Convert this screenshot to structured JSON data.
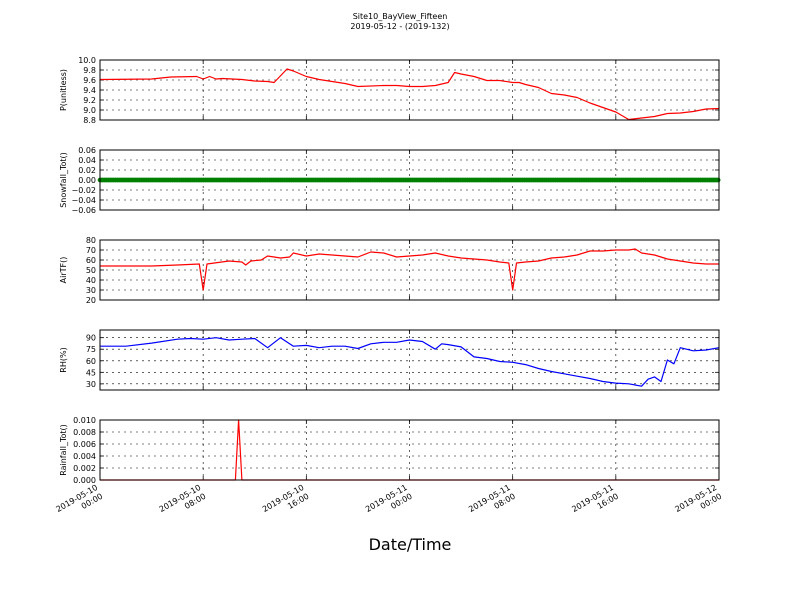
{
  "figure": {
    "title_line1": "Site10_BayView_Fifteen",
    "title_line2": "2019-05-12 - (2019-132)",
    "xlabel": "Date/Time",
    "x_ticks": [
      {
        "line1": "2019-05-10",
        "line2": "00:00"
      },
      {
        "line1": "2019-05-10",
        "line2": "08:00"
      },
      {
        "line1": "2019-05-10",
        "line2": "16:00"
      },
      {
        "line1": "2019-05-11",
        "line2": "00:00"
      },
      {
        "line1": "2019-05-11",
        "line2": "08:00"
      },
      {
        "line1": "2019-05-11",
        "line2": "16:00"
      },
      {
        "line1": "2019-05-12",
        "line2": "00:00"
      }
    ]
  },
  "chart_data": [
    {
      "type": "line",
      "ylabel": "P(unitless)",
      "ylim": [
        8.8,
        10.0
      ],
      "yticks": [
        "10.0",
        "9.8",
        "9.6",
        "9.4",
        "9.2",
        "9.0",
        "8.8"
      ],
      "color": "#ff0000",
      "grid": true,
      "x_hours": [
        0,
        4,
        5.5,
        7.5,
        8,
        8.5,
        9,
        9.5,
        11,
        12,
        13,
        13.5,
        14.5,
        15,
        16,
        17,
        18,
        19,
        20,
        22,
        23,
        24,
        25,
        26,
        27,
        27.5,
        28,
        29,
        30,
        31,
        32,
        32.5,
        33,
        34,
        35,
        36,
        37,
        38,
        39,
        40,
        41,
        42,
        43,
        44,
        45,
        46,
        47,
        48
      ],
      "values": [
        9.61,
        9.62,
        9.66,
        9.67,
        9.62,
        9.67,
        9.62,
        9.63,
        9.61,
        9.58,
        9.57,
        9.55,
        9.82,
        9.78,
        9.67,
        9.61,
        9.57,
        9.53,
        9.47,
        9.49,
        9.49,
        9.47,
        9.47,
        9.49,
        9.55,
        9.75,
        9.72,
        9.67,
        9.59,
        9.59,
        9.55,
        9.55,
        9.51,
        9.45,
        9.33,
        9.3,
        9.25,
        9.14,
        9.05,
        8.96,
        8.81,
        8.84,
        8.87,
        8.93,
        8.94,
        8.97,
        9.02,
        9.03
      ]
    },
    {
      "type": "scatter",
      "ylabel": "Snowfall_Tot()",
      "ylim": [
        -0.06,
        0.06
      ],
      "yticks": [
        "0.06",
        "0.04",
        "0.02",
        "0.00",
        "−0.02",
        "−0.04",
        "−0.06"
      ],
      "color": "#008000",
      "grid": true,
      "x_hours": [
        0,
        48
      ],
      "values": [
        0.0,
        0.0
      ],
      "note": "constant 0.00 across the whole period"
    },
    {
      "type": "line",
      "ylabel": "AirTF()",
      "ylim": [
        20,
        80
      ],
      "yticks": [
        "80",
        "70",
        "60",
        "50",
        "40",
        "30",
        "20"
      ],
      "color": "#ff0000",
      "grid": true,
      "x_hours": [
        0,
        4,
        6,
        7.7,
        8,
        8.3,
        10,
        11,
        11.3,
        11.7,
        12.5,
        13,
        14,
        14.7,
        15,
        16,
        17,
        18,
        19,
        20,
        21,
        22,
        23,
        24,
        25,
        26,
        27,
        28,
        29,
        30,
        31,
        31.7,
        32,
        32.3,
        33,
        34,
        35,
        36,
        37,
        38,
        39,
        40,
        41,
        41.5,
        42,
        43,
        44,
        45,
        46,
        47,
        48
      ],
      "values": [
        54,
        54,
        55,
        56,
        30,
        56,
        59,
        58,
        55,
        59,
        60,
        64,
        62,
        63,
        67,
        64,
        66,
        65,
        64,
        63,
        68,
        67,
        63,
        64,
        65,
        67,
        64,
        62,
        61,
        60,
        58,
        57,
        30,
        57,
        58,
        59,
        62,
        63,
        65,
        69,
        69,
        70,
        70,
        71,
        67,
        65,
        61,
        59,
        57,
        56,
        56
      ]
    },
    {
      "type": "line",
      "ylabel": "RH(%)",
      "ylim": [
        22,
        100
      ],
      "yticks": [
        "90",
        "75",
        "60",
        "45",
        "30"
      ],
      "color": "#0000ff",
      "grid": true,
      "x_hours": [
        0,
        2,
        4,
        6,
        7,
        8,
        9,
        10,
        11,
        12,
        13,
        14,
        15,
        16,
        17,
        18,
        19,
        20,
        21,
        22,
        23,
        24,
        25,
        26,
        26.5,
        27,
        28,
        29,
        30,
        31,
        32,
        33,
        34,
        35,
        36,
        37,
        38,
        39,
        40,
        41,
        42,
        42.5,
        43,
        43.5,
        44,
        44.5,
        45,
        46,
        47,
        48
      ],
      "values": [
        79,
        79,
        83,
        88,
        89,
        88,
        90,
        87,
        88,
        89,
        77,
        90,
        79,
        80,
        77,
        79,
        79,
        76,
        82,
        84,
        84,
        87,
        85,
        75,
        82,
        81,
        78,
        65,
        63,
        59,
        58,
        55,
        50,
        46,
        43,
        40,
        37,
        33,
        31,
        30,
        27,
        36,
        39,
        33,
        61,
        56,
        77,
        73,
        74,
        77
      ]
    },
    {
      "type": "line",
      "ylabel": "Rainfall_Tot()",
      "ylim": [
        0.0,
        0.01
      ],
      "yticks": [
        "0.010",
        "0.008",
        "0.006",
        "0.004",
        "0.002",
        "0.000"
      ],
      "color": "#ff0000",
      "grid": true,
      "x_hours": [
        0,
        10.5,
        10.75,
        11.0,
        48
      ],
      "values": [
        0.0,
        0.0,
        0.01,
        0.0,
        0.0
      ]
    }
  ]
}
